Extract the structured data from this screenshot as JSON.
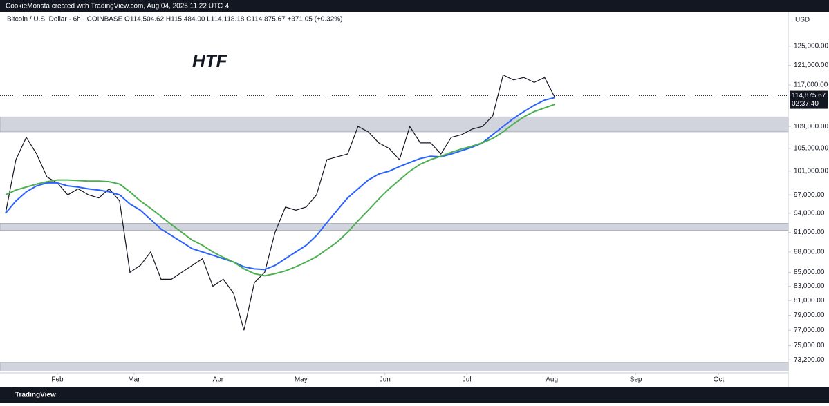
{
  "header": "CookieMonsta created with TradingView.com, Aug 04, 2025 11:22 UTC-4",
  "footer": "TradingView",
  "chart_data": {
    "type": "line",
    "legend_text": "Bitcoin / U.S. Dollar · 6h · COINBASE  O114,504.62 H115,484.00 L114,118.18 C114,875.67 +371.05 (+0.32%)",
    "annotation": "HTF",
    "y_unit": "USD",
    "log_scale": true,
    "ylim": [
      71600,
      132400
    ],
    "yticks": [
      {
        "value": 125000,
        "label": "125,000.00"
      },
      {
        "value": 121000,
        "label": "121,000.00"
      },
      {
        "value": 117000,
        "label": "117,000.00"
      },
      {
        "value": 109000,
        "label": "109,000.00"
      },
      {
        "value": 105000,
        "label": "105,000.00"
      },
      {
        "value": 101000,
        "label": "101,000.00"
      },
      {
        "value": 97000,
        "label": "97,000.00"
      },
      {
        "value": 94000,
        "label": "94,000.00"
      },
      {
        "value": 91000,
        "label": "91,000.00"
      },
      {
        "value": 88000,
        "label": "88,000.00"
      },
      {
        "value": 85000,
        "label": "85,000.00"
      },
      {
        "value": 83000,
        "label": "83,000.00"
      },
      {
        "value": 81000,
        "label": "81,000.00"
      },
      {
        "value": 79000,
        "label": "79,000.00"
      },
      {
        "value": 77000,
        "label": "77,000.00"
      },
      {
        "value": 75000,
        "label": "75,000.00"
      },
      {
        "value": 73200,
        "label": "73,200.00"
      }
    ],
    "xlim": [
      0,
      75.5
    ],
    "xticks": [
      {
        "value": 5,
        "label": "Feb"
      },
      {
        "value": 12.4,
        "label": "Mar"
      },
      {
        "value": 20.5,
        "label": "Apr"
      },
      {
        "value": 28.5,
        "label": "May"
      },
      {
        "value": 36.6,
        "label": "Jun"
      },
      {
        "value": 44.5,
        "label": "Jul"
      },
      {
        "value": 52.7,
        "label": "Aug"
      },
      {
        "value": 60.8,
        "label": "Sep"
      },
      {
        "value": 68.8,
        "label": "Oct"
      }
    ],
    "zones": [
      {
        "from": 108000,
        "to": 110800,
        "color": "#d1d4dc"
      },
      {
        "from": 91300,
        "to": 92400,
        "color": "#d1d4dc"
      },
      {
        "from": 71800,
        "to": 72900,
        "color": "#d1d4dc"
      }
    ],
    "last_price": {
      "value": 114875.67,
      "label": "114,875.67"
    },
    "countdown": "02:37:40",
    "series": [
      {
        "color": "#131722",
        "values": [
          94000,
          103000,
          107000,
          104000,
          100000,
          99000,
          97000,
          98000,
          97000,
          96500,
          98000,
          96000,
          85000,
          86000,
          88000,
          84000,
          84000,
          85000,
          86000,
          87000,
          83000,
          84000,
          82000,
          77000,
          83500,
          85000,
          91000,
          95000,
          94500,
          95000,
          97000,
          103000,
          103500,
          104000,
          109000,
          108000,
          106000,
          105000,
          103000,
          109000,
          106000,
          106000,
          104000,
          107000,
          107500,
          108500,
          109000,
          111000,
          119000,
          118000,
          118500,
          117500,
          118500,
          114500
        ]
      },
      {
        "color": "#2962ff",
        "values": [
          94000,
          96000,
          97500,
          98500,
          99000,
          99000,
          98500,
          98300,
          98000,
          97800,
          97500,
          97000,
          95500,
          94500,
          93000,
          91500,
          90500,
          89500,
          88500,
          88000,
          87500,
          87000,
          86500,
          85800,
          85500,
          85400,
          86000,
          87000,
          88000,
          89000,
          90500,
          92500,
          94500,
          96500,
          98000,
          99500,
          100500,
          101000,
          101800,
          102500,
          103200,
          103600,
          103500,
          104000,
          104600,
          105200,
          106000,
          107500,
          109000,
          110500,
          111800,
          113000,
          114000,
          114500
        ]
      },
      {
        "color": "#4caf50",
        "values": [
          97000,
          97800,
          98300,
          98800,
          99200,
          99500,
          99500,
          99400,
          99300,
          99300,
          99200,
          98800,
          97500,
          96000,
          94800,
          93500,
          92200,
          91000,
          89800,
          89000,
          88000,
          87200,
          86500,
          85500,
          84800,
          84500,
          84800,
          85200,
          85800,
          86500,
          87300,
          88400,
          89500,
          91000,
          92800,
          94500,
          96300,
          98000,
          99500,
          101000,
          102200,
          103000,
          103600,
          104300,
          104900,
          105400,
          106000,
          106800,
          108000,
          109500,
          110800,
          111800,
          112500,
          113200
        ]
      }
    ]
  }
}
